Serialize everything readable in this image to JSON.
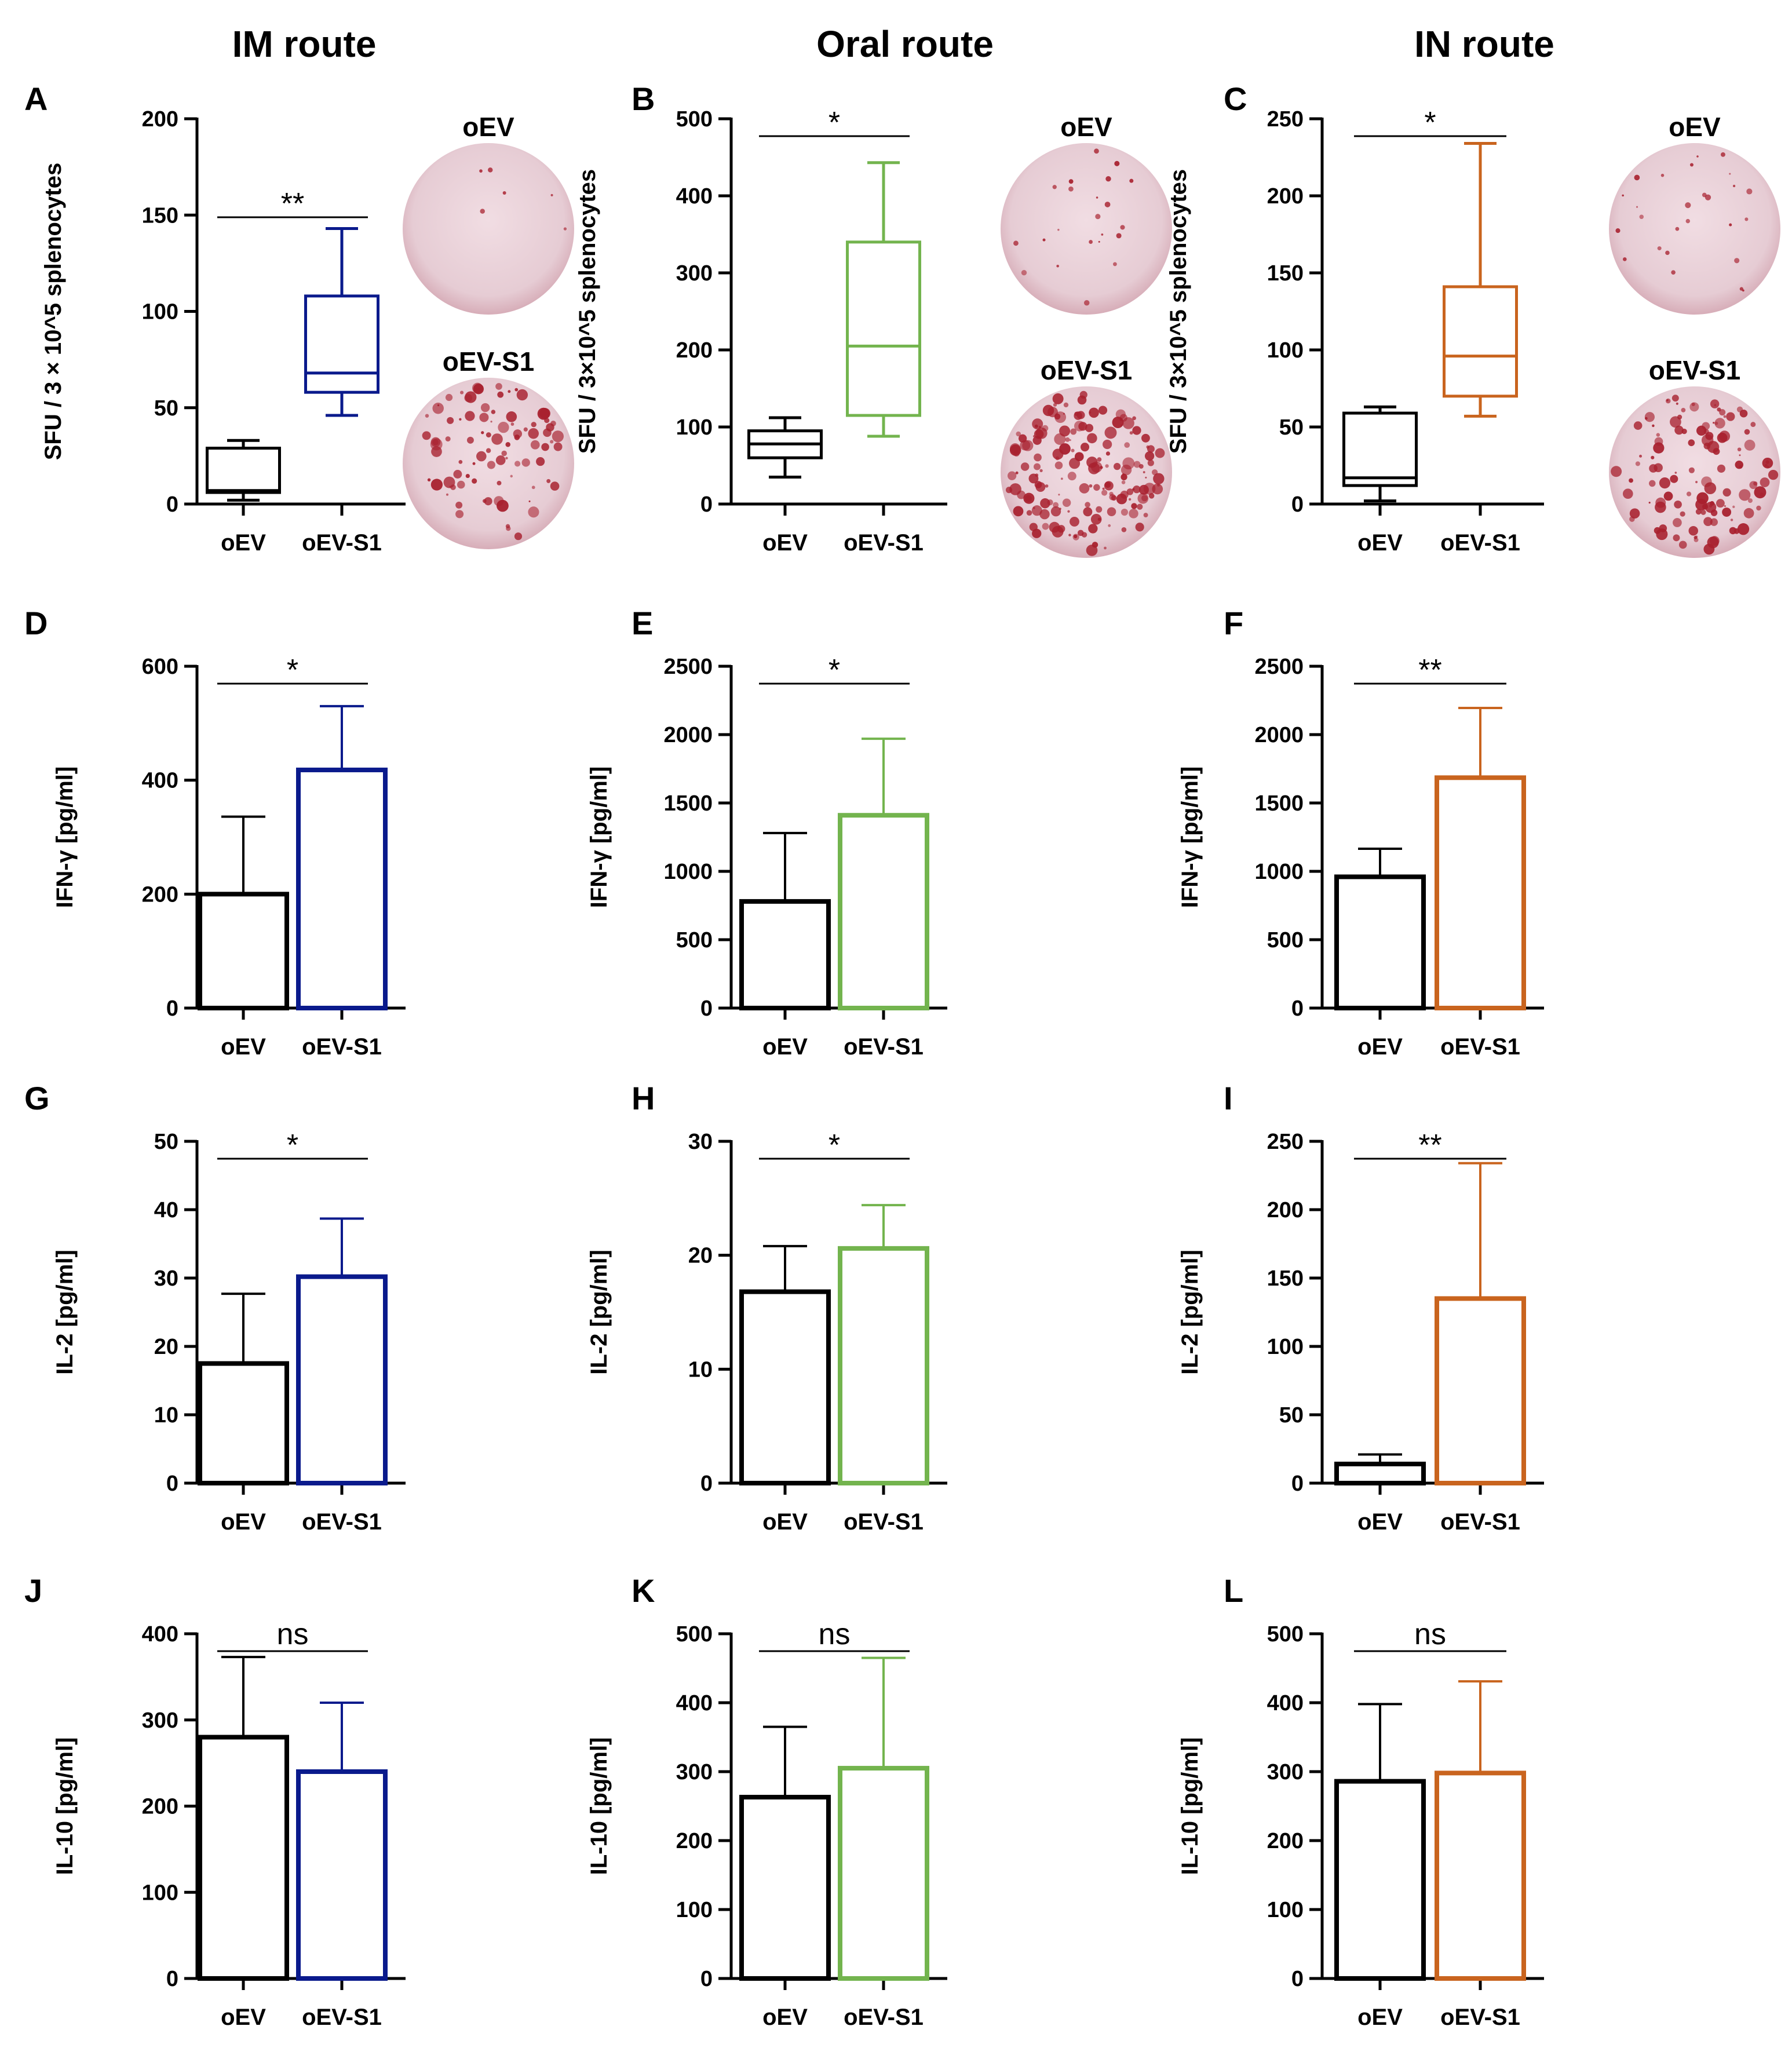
{
  "colors": {
    "black": "#000000",
    "im": "#0a1a8c",
    "oral": "#73b44e",
    "in": "#c9641e",
    "well_bg": "#e9d2d9",
    "spot": "#a8202e"
  },
  "routes": [
    {
      "key": "im",
      "title": "IM route"
    },
    {
      "key": "oral",
      "title": "Oral route"
    },
    {
      "key": "in",
      "title": "IN route"
    }
  ],
  "well_labels": {
    "top": "oEV",
    "bottom": "oEV-S1"
  },
  "chart_data": [
    {
      "panel": "A",
      "type": "box",
      "route": "im",
      "ylabel": "SFU / 3 × 10^5 splenocytes",
      "ylim": [
        0,
        200
      ],
      "yticks": [
        0,
        50,
        100,
        150,
        200
      ],
      "categories": [
        "oEV",
        "oEV-S1"
      ],
      "boxes": [
        {
          "min": 2,
          "q1": 6,
          "median": 7,
          "q3": 29,
          "max": 33
        },
        {
          "min": 46,
          "q1": 58,
          "median": 68,
          "q3": 108,
          "max": 143
        }
      ],
      "significance": "**"
    },
    {
      "panel": "B",
      "type": "box",
      "route": "oral",
      "ylabel": "SFU / 3×10^5 splenocytes",
      "ylim": [
        0,
        500
      ],
      "yticks": [
        0,
        100,
        200,
        300,
        400,
        500
      ],
      "categories": [
        "oEV",
        "oEV-S1"
      ],
      "boxes": [
        {
          "min": 35,
          "q1": 60,
          "median": 78,
          "q3": 95,
          "max": 112
        },
        {
          "min": 88,
          "q1": 115,
          "median": 205,
          "q3": 340,
          "max": 443
        }
      ],
      "significance": "*"
    },
    {
      "panel": "C",
      "type": "box",
      "route": "in",
      "ylabel": "SFU / 3×10^5 splenocytes",
      "ylim": [
        0,
        250
      ],
      "yticks": [
        0,
        50,
        100,
        150,
        200,
        250
      ],
      "categories": [
        "oEV",
        "oEV-S1"
      ],
      "boxes": [
        {
          "min": 2,
          "q1": 12,
          "median": 17,
          "q3": 59,
          "max": 63
        },
        {
          "min": 57,
          "q1": 70,
          "median": 96,
          "q3": 141,
          "max": 234
        }
      ],
      "significance": "*"
    },
    {
      "panel": "D",
      "type": "bar",
      "route": "im",
      "ylabel": "IFN-γ [pg/ml]",
      "ylim": [
        0,
        600
      ],
      "yticks": [
        0,
        200,
        400,
        600
      ],
      "categories": [
        "oEV",
        "oEV-S1"
      ],
      "values": [
        200,
        418
      ],
      "errors": [
        136,
        112
      ],
      "significance": "*"
    },
    {
      "panel": "E",
      "type": "bar",
      "route": "oral",
      "ylabel": "IFN-γ [pg/ml]",
      "ylim": [
        0,
        2500
      ],
      "yticks": [
        0,
        500,
        1000,
        1500,
        2000,
        2500
      ],
      "categories": [
        "oEV",
        "oEV-S1"
      ],
      "values": [
        780,
        1410
      ],
      "errors": [
        500,
        560
      ],
      "significance": "*"
    },
    {
      "panel": "F",
      "type": "bar",
      "route": "in",
      "ylabel": "IFN-γ [pg/ml]",
      "ylim": [
        0,
        2500
      ],
      "yticks": [
        0,
        500,
        1000,
        1500,
        2000,
        2500
      ],
      "categories": [
        "oEV",
        "oEV-S1"
      ],
      "values": [
        960,
        1685
      ],
      "errors": [
        205,
        510
      ],
      "significance": "**"
    },
    {
      "panel": "G",
      "type": "bar",
      "route": "im",
      "ylabel": "IL-2 [pg/ml]",
      "ylim": [
        0,
        50
      ],
      "yticks": [
        0,
        10,
        20,
        30,
        40,
        50
      ],
      "categories": [
        "oEV",
        "oEV-S1"
      ],
      "values": [
        17.5,
        30.2
      ],
      "errors": [
        10.2,
        8.5
      ],
      "significance": "*"
    },
    {
      "panel": "H",
      "type": "bar",
      "route": "oral",
      "ylabel": "IL-2 [pg/ml]",
      "ylim": [
        0,
        30
      ],
      "yticks": [
        0,
        10,
        20,
        30
      ],
      "categories": [
        "oEV",
        "oEV-S1"
      ],
      "values": [
        16.8,
        20.6
      ],
      "errors": [
        4.0,
        3.8
      ],
      "significance": "*"
    },
    {
      "panel": "I",
      "type": "bar",
      "route": "in",
      "ylabel": "IL-2 [pg/ml]",
      "ylim": [
        0,
        250
      ],
      "yticks": [
        0,
        50,
        100,
        150,
        200,
        250
      ],
      "categories": [
        "oEV",
        "oEV-S1"
      ],
      "values": [
        14,
        135
      ],
      "errors": [
        7,
        99
      ],
      "significance": "**"
    },
    {
      "panel": "J",
      "type": "bar",
      "route": "im",
      "ylabel": "IL-10 [pg/ml]",
      "ylim": [
        0,
        400
      ],
      "yticks": [
        0,
        100,
        200,
        300,
        400
      ],
      "categories": [
        "oEV",
        "oEV-S1"
      ],
      "values": [
        280,
        240
      ],
      "errors": [
        93,
        80
      ],
      "significance": "ns"
    },
    {
      "panel": "K",
      "type": "bar",
      "route": "oral",
      "ylabel": "IL-10 [pg/ml]",
      "ylim": [
        0,
        500
      ],
      "yticks": [
        0,
        100,
        200,
        300,
        400,
        500
      ],
      "categories": [
        "oEV",
        "oEV-S1"
      ],
      "values": [
        263,
        305
      ],
      "errors": [
        102,
        160
      ],
      "significance": "ns"
    },
    {
      "panel": "L",
      "type": "bar",
      "route": "in",
      "ylabel": "IL-10 [pg/ml]",
      "ylim": [
        0,
        500
      ],
      "yticks": [
        0,
        100,
        200,
        300,
        400,
        500
      ],
      "categories": [
        "oEV",
        "oEV-S1"
      ],
      "values": [
        286,
        298
      ],
      "errors": [
        112,
        133
      ],
      "significance": "ns"
    }
  ]
}
